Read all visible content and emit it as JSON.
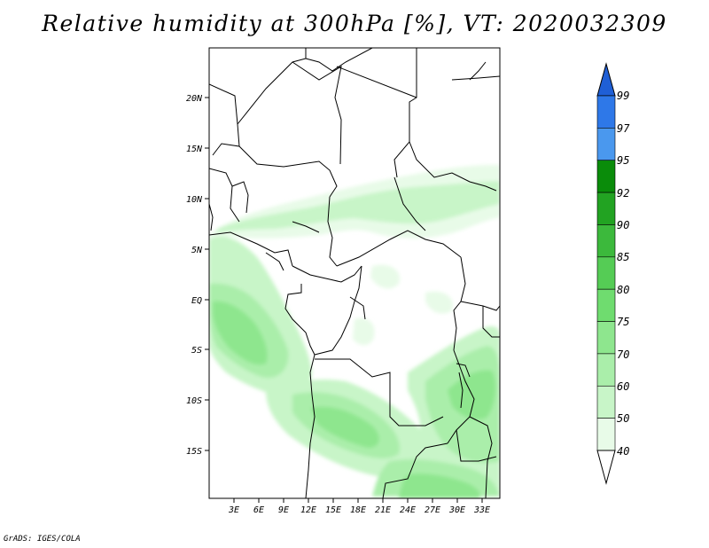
{
  "title": "Relative humidity at 300hPa [%], VT: 2020032309",
  "credit": "GrADS: IGES/COLA",
  "map": {
    "lon_range": [
      0,
      35
    ],
    "lat_range": [
      -20,
      24
    ],
    "lon_ticks": [
      "3E",
      "6E",
      "9E",
      "12E",
      "15E",
      "18E",
      "21E",
      "24E",
      "27E",
      "30E",
      "33E"
    ],
    "lat_ticks": [
      "20N",
      "15N",
      "10N",
      "5N",
      "EQ",
      "5S",
      "10S",
      "15S"
    ]
  },
  "colorbar": {
    "levels": [
      "99",
      "97",
      "95",
      "92",
      "90",
      "85",
      "80",
      "75",
      "70",
      "60",
      "50",
      "40"
    ],
    "colors": [
      "#1f5fd6",
      "#2e78e8",
      "#4a98ee",
      "#0a8c0a",
      "#22a322",
      "#3cb93c",
      "#55cc55",
      "#6fdc6f",
      "#8ee68e",
      "#aaeeaa",
      "#c8f5c8",
      "#e8fbe8"
    ]
  }
}
